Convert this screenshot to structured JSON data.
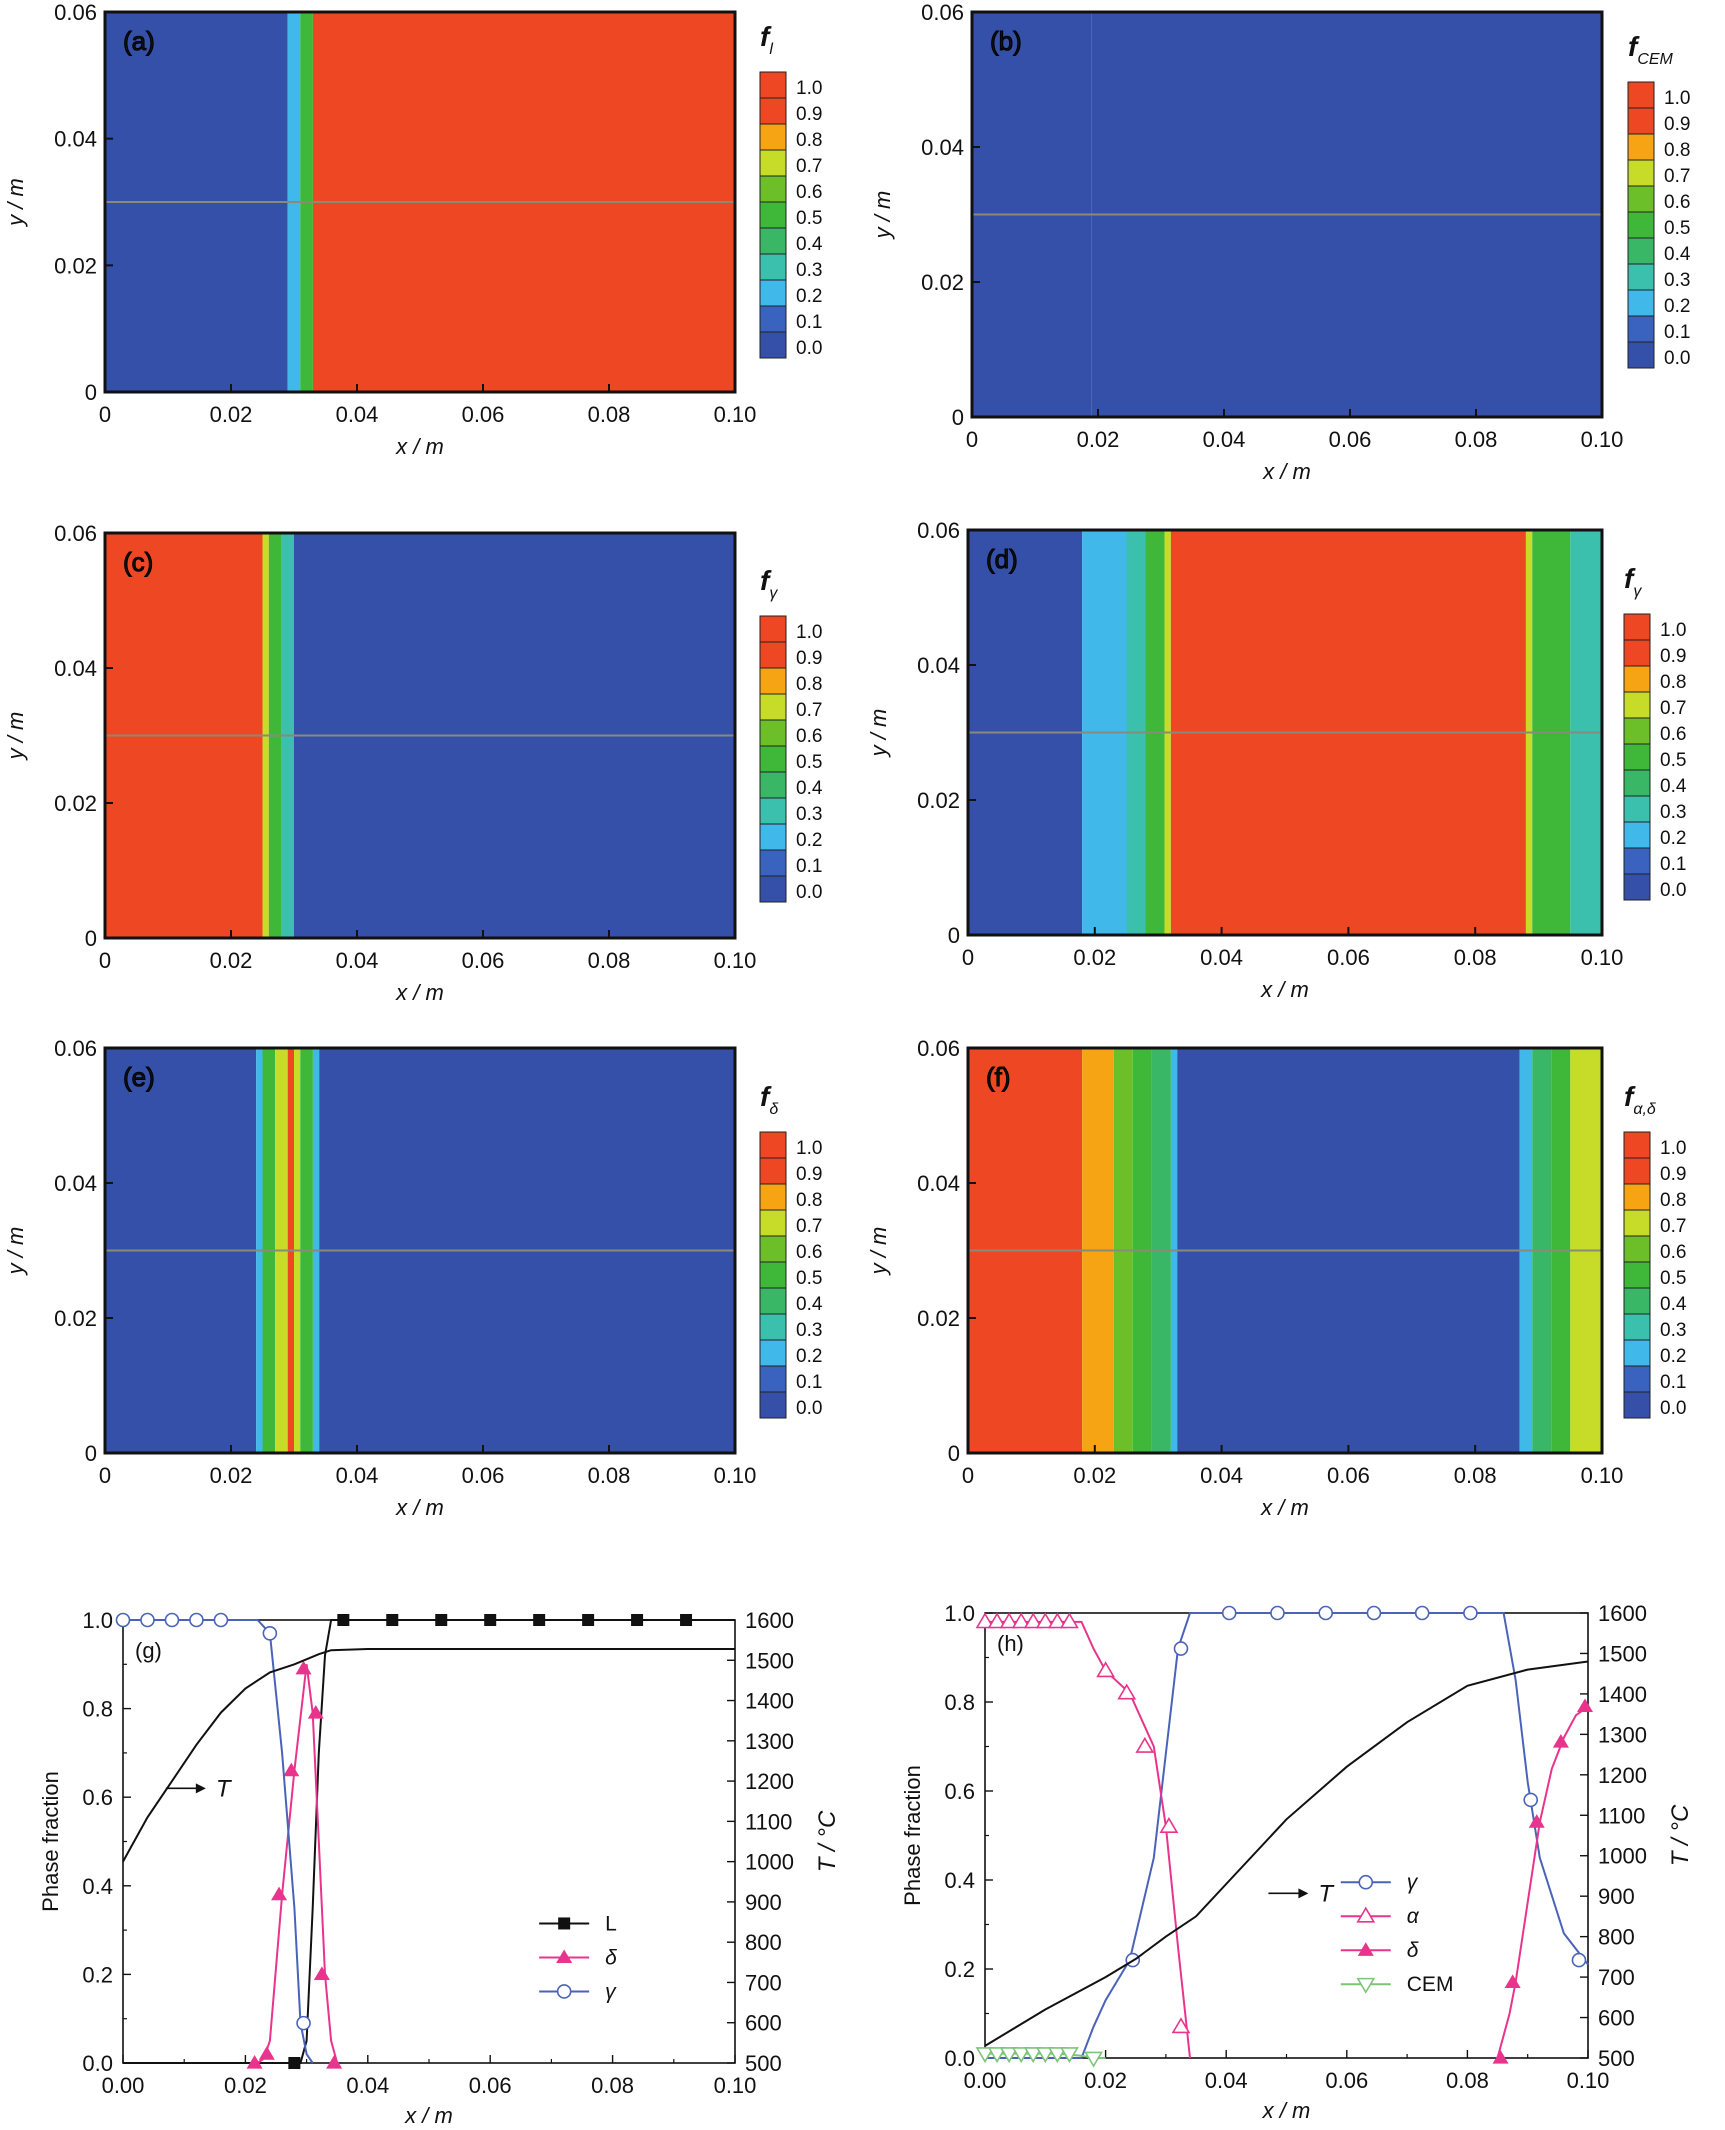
{
  "palette": {
    "contour_levels": [
      "#3550a8",
      "#3a63bf",
      "#40b8ea",
      "#3bc0ad",
      "#39b766",
      "#3fb83a",
      "#6dbf2a",
      "#c7dc28",
      "#f6a414",
      "#f4a020",
      "#ee4723",
      "#e8262a"
    ],
    "red": "#ee4723",
    "orange": "#f6a414",
    "yellow_green": "#c7dc28",
    "cyan": "#40b8ea",
    "blue": "#3550a8",
    "line_L": "#111111",
    "line_delta": "#e8348c",
    "line_gamma": "#4a63b8",
    "line_alpha": "#e8348c",
    "line_cem": "#7cc576",
    "line_T": "#111111"
  },
  "chart_data": [
    {
      "panel": "a",
      "type": "heatmap",
      "label": "(a)",
      "colorbar_title": "f",
      "colorbar_subscript": "l",
      "xlabel": "x / m",
      "ylabel": "y / m",
      "xlim": [
        0,
        0.1
      ],
      "ylim": [
        0,
        0.06
      ],
      "xticks": [
        "0",
        "0.02",
        "0.04",
        "0.06",
        "0.08",
        "0.10"
      ],
      "yticks": [
        "0",
        "0.02",
        "0.04",
        "0.06"
      ],
      "colorbar_ticks": [
        "0.0",
        "0.1",
        "0.2",
        "0.3",
        "0.4",
        "0.5",
        "0.6",
        "0.7",
        "0.8",
        "0.9",
        "1.0"
      ],
      "bands": [
        {
          "x0": 0,
          "x1": 0.029,
          "value": 0.0
        },
        {
          "x0": 0.029,
          "x1": 0.031,
          "value": 0.2
        },
        {
          "x0": 0.031,
          "x1": 0.033,
          "value": 0.6
        },
        {
          "x0": 0.033,
          "x1": 0.1,
          "value": 1.0
        }
      ],
      "profile_line_y": 0.03
    },
    {
      "panel": "b",
      "type": "heatmap",
      "label": "(b)",
      "colorbar_title": "f",
      "colorbar_subscript": "CEM",
      "xlabel": "x / m",
      "ylabel": "y / m",
      "xlim": [
        0,
        0.1
      ],
      "ylim": [
        0,
        0.06
      ],
      "xticks": [
        "0",
        "0.02",
        "0.04",
        "0.06",
        "0.08",
        "0.10"
      ],
      "yticks": [
        "0",
        "0.02",
        "0.04",
        "0.06"
      ],
      "colorbar_ticks": [
        "0.0",
        "0.1",
        "0.2",
        "0.3",
        "0.4",
        "0.5",
        "0.6",
        "0.7",
        "0.8",
        "0.9",
        "1.0"
      ],
      "bands": [
        {
          "x0": 0,
          "x1": 0.019,
          "value": 0.02
        },
        {
          "x0": 0.019,
          "x1": 0.1,
          "value": 0.0
        }
      ],
      "profile_line_y": 0.03
    },
    {
      "panel": "c",
      "type": "heatmap",
      "label": "(c)",
      "colorbar_title": "f",
      "colorbar_subscript": "γ",
      "xlabel": "x / m",
      "ylabel": "y / m",
      "xlim": [
        0,
        0.1
      ],
      "ylim": [
        0,
        0.06
      ],
      "xticks": [
        "0",
        "0.02",
        "0.04",
        "0.06",
        "0.08",
        "0.10"
      ],
      "yticks": [
        "0",
        "0.02",
        "0.04",
        "0.06"
      ],
      "colorbar_ticks": [
        "0.0",
        "0.1",
        "0.2",
        "0.3",
        "0.4",
        "0.5",
        "0.6",
        "0.7",
        "0.8",
        "0.9",
        "1.0"
      ],
      "bands": [
        {
          "x0": 0,
          "x1": 0.025,
          "value": 1.0
        },
        {
          "x0": 0.025,
          "x1": 0.026,
          "value": 0.8
        },
        {
          "x0": 0.026,
          "x1": 0.028,
          "value": 0.5
        },
        {
          "x0": 0.028,
          "x1": 0.03,
          "value": 0.3
        },
        {
          "x0": 0.03,
          "x1": 0.1,
          "value": 0.0
        }
      ],
      "profile_line_y": 0.03
    },
    {
      "panel": "d",
      "type": "heatmap",
      "label": "(d)",
      "colorbar_title": "f",
      "colorbar_subscript": "γ",
      "xlabel": "x / m",
      "ylabel": "y / m",
      "xlim": [
        0,
        0.1
      ],
      "ylim": [
        0,
        0.06
      ],
      "xticks": [
        "0",
        "0.02",
        "0.04",
        "0.06",
        "0.08",
        "0.10"
      ],
      "yticks": [
        "0",
        "0.02",
        "0.04",
        "0.06"
      ],
      "colorbar_ticks": [
        "0.0",
        "0.1",
        "0.2",
        "0.3",
        "0.4",
        "0.5",
        "0.6",
        "0.7",
        "0.8",
        "0.9",
        "1.0"
      ],
      "bands": [
        {
          "x0": 0,
          "x1": 0.018,
          "value": 0.0
        },
        {
          "x0": 0.018,
          "x1": 0.025,
          "value": 0.2
        },
        {
          "x0": 0.025,
          "x1": 0.028,
          "value": 0.3
        },
        {
          "x0": 0.028,
          "x1": 0.031,
          "value": 0.5
        },
        {
          "x0": 0.031,
          "x1": 0.032,
          "value": 0.8
        },
        {
          "x0": 0.032,
          "x1": 0.088,
          "value": 1.0
        },
        {
          "x0": 0.088,
          "x1": 0.089,
          "value": 0.8
        },
        {
          "x0": 0.089,
          "x1": 0.095,
          "value": 0.5
        },
        {
          "x0": 0.095,
          "x1": 0.1,
          "value": 0.3
        }
      ],
      "profile_line_y": 0.03
    },
    {
      "panel": "e",
      "type": "heatmap",
      "label": "(e)",
      "colorbar_title": "f",
      "colorbar_subscript": "δ",
      "xlabel": "x / m",
      "ylabel": "y / m",
      "xlim": [
        0,
        0.1
      ],
      "ylim": [
        0,
        0.06
      ],
      "xticks": [
        "0",
        "0.02",
        "0.04",
        "0.06",
        "0.08",
        "0.10"
      ],
      "yticks": [
        "0",
        "0.02",
        "0.04",
        "0.06"
      ],
      "colorbar_ticks": [
        "0.0",
        "0.1",
        "0.2",
        "0.3",
        "0.4",
        "0.5",
        "0.6",
        "0.7",
        "0.8",
        "0.9",
        "1.0"
      ],
      "bands": [
        {
          "x0": 0,
          "x1": 0.024,
          "value": 0.0
        },
        {
          "x0": 0.024,
          "x1": 0.025,
          "value": 0.2
        },
        {
          "x0": 0.025,
          "x1": 0.027,
          "value": 0.5
        },
        {
          "x0": 0.027,
          "x1": 0.029,
          "value": 0.8
        },
        {
          "x0": 0.029,
          "x1": 0.03,
          "value": 1.0
        },
        {
          "x0": 0.03,
          "x1": 0.031,
          "value": 0.8
        },
        {
          "x0": 0.031,
          "x1": 0.033,
          "value": 0.5
        },
        {
          "x0": 0.033,
          "x1": 0.034,
          "value": 0.2
        },
        {
          "x0": 0.034,
          "x1": 0.1,
          "value": 0.0
        }
      ],
      "profile_line_y": 0.03
    },
    {
      "panel": "f",
      "type": "heatmap",
      "label": "(f)",
      "colorbar_title": "f",
      "colorbar_subscript": "α,δ",
      "xlabel": "x / m",
      "ylabel": "y / m",
      "xlim": [
        0,
        0.1
      ],
      "ylim": [
        0,
        0.06
      ],
      "xticks": [
        "0",
        "0.02",
        "0.04",
        "0.06",
        "0.08",
        "0.10"
      ],
      "yticks": [
        "0",
        "0.02",
        "0.04",
        "0.06"
      ],
      "colorbar_ticks": [
        "0.0",
        "0.1",
        "0.2",
        "0.3",
        "0.4",
        "0.5",
        "0.6",
        "0.7",
        "0.8",
        "0.9",
        "1.0"
      ],
      "bands": [
        {
          "x0": 0,
          "x1": 0.018,
          "value": 1.0
        },
        {
          "x0": 0.018,
          "x1": 0.023,
          "value": 0.85
        },
        {
          "x0": 0.023,
          "x1": 0.026,
          "value": 0.7
        },
        {
          "x0": 0.026,
          "x1": 0.029,
          "value": 0.5
        },
        {
          "x0": 0.029,
          "x1": 0.032,
          "value": 0.4
        },
        {
          "x0": 0.032,
          "x1": 0.033,
          "value": 0.2
        },
        {
          "x0": 0.033,
          "x1": 0.087,
          "value": 0.0
        },
        {
          "x0": 0.087,
          "x1": 0.089,
          "value": 0.2
        },
        {
          "x0": 0.089,
          "x1": 0.092,
          "value": 0.4
        },
        {
          "x0": 0.092,
          "x1": 0.095,
          "value": 0.6
        },
        {
          "x0": 0.095,
          "x1": 0.1,
          "value": 0.75
        }
      ],
      "profile_line_y": 0.03
    },
    {
      "panel": "g",
      "type": "line",
      "label": "(g)",
      "xlabel": "x / m",
      "ylabel": "Phase fraction",
      "y2label": "T / °C",
      "xlim": [
        0,
        0.1
      ],
      "ylim": [
        0,
        1.0
      ],
      "y2lim": [
        500,
        1600
      ],
      "xticks": [
        "0.00",
        "0.02",
        "0.04",
        "0.06",
        "0.08",
        "0.10"
      ],
      "yticks": [
        "0.0",
        "0.2",
        "0.4",
        "0.6",
        "0.8",
        "1.0"
      ],
      "y2ticks": [
        "500",
        "600",
        "700",
        "800",
        "900",
        "1000",
        "1100",
        "1200",
        "1300",
        "1400",
        "1500",
        "1600"
      ],
      "annotation": "T",
      "legend_position": "lower-right",
      "series": [
        {
          "name": "L",
          "marker": "square-filled",
          "color": "#111111",
          "x": [
            0,
            0.026,
            0.028,
            0.029,
            0.03,
            0.031,
            0.032,
            0.033,
            0.034,
            0.036,
            0.044,
            0.052,
            0.06,
            0.068,
            0.076,
            0.084,
            0.092,
            0.1
          ],
          "y": [
            0,
            0,
            0,
            0,
            0.05,
            0.35,
            0.7,
            0.92,
            1.0,
            1.0,
            1.0,
            1.0,
            1.0,
            1.0,
            1.0,
            1.0,
            1.0,
            1.0
          ],
          "markers_x": [
            0.028,
            0.036,
            0.044,
            0.052,
            0.06,
            0.068,
            0.076,
            0.084,
            0.092
          ],
          "markers_y": [
            0,
            1.0,
            1.0,
            1.0,
            1.0,
            1.0,
            1.0,
            1.0,
            1.0
          ]
        },
        {
          "name": "δ",
          "marker": "triangle-up-filled",
          "color": "#e8348c",
          "x": [
            0.022,
            0.023,
            0.024,
            0.026,
            0.028,
            0.03,
            0.031,
            0.032,
            0.033,
            0.034,
            0.035
          ],
          "y": [
            0,
            0.01,
            0.05,
            0.38,
            0.66,
            0.9,
            0.79,
            0.5,
            0.2,
            0.05,
            0.0
          ],
          "markers_x": [
            0.0215,
            0.0235,
            0.0255,
            0.0275,
            0.0295,
            0.0315,
            0.0325,
            0.0345
          ],
          "markers_y": [
            0.0,
            0.02,
            0.38,
            0.66,
            0.89,
            0.79,
            0.2,
            0.0
          ]
        },
        {
          "name": "γ",
          "marker": "circle-open",
          "color": "#4a63b8",
          "x": [
            0,
            0.008,
            0.016,
            0.022,
            0.024,
            0.026,
            0.028,
            0.029,
            0.03,
            0.031
          ],
          "y": [
            1.0,
            1.0,
            1.0,
            1.0,
            0.97,
            0.7,
            0.35,
            0.09,
            0.02,
            0.0
          ],
          "markers_x": [
            0,
            0.004,
            0.008,
            0.012,
            0.016,
            0.024,
            0.0295
          ],
          "markers_y": [
            1.0,
            1.0,
            1.0,
            1.0,
            1.0,
            0.97,
            0.09
          ]
        },
        {
          "name": "T",
          "marker": "none",
          "color": "#111111",
          "axis": "right",
          "x": [
            0,
            0.004,
            0.008,
            0.012,
            0.016,
            0.02,
            0.024,
            0.028,
            0.032,
            0.034,
            0.04,
            0.06,
            0.08,
            0.1
          ],
          "y": [
            1000,
            1110,
            1200,
            1290,
            1370,
            1430,
            1470,
            1490,
            1515,
            1525,
            1528,
            1528,
            1528,
            1528
          ]
        }
      ]
    },
    {
      "panel": "h",
      "type": "line",
      "label": "(h)",
      "xlabel": "x / m",
      "ylabel": "Phase fraction",
      "y2label": "T / °C",
      "xlim": [
        0,
        0.1
      ],
      "ylim": [
        0,
        1.0
      ],
      "y2lim": [
        500,
        1600
      ],
      "xticks": [
        "0.00",
        "0.02",
        "0.04",
        "0.06",
        "0.08",
        "0.10"
      ],
      "yticks": [
        "0.0",
        "0.2",
        "0.4",
        "0.6",
        "0.8",
        "1.0"
      ],
      "y2ticks": [
        "500",
        "600",
        "700",
        "800",
        "900",
        "1000",
        "1100",
        "1200",
        "1300",
        "1400",
        "1500",
        "1600"
      ],
      "annotation": "T",
      "legend_position": "lower-right",
      "series": [
        {
          "name": "γ",
          "marker": "circle-open",
          "color": "#4a63b8",
          "x": [
            0,
            0.016,
            0.018,
            0.02,
            0.024,
            0.028,
            0.032,
            0.034,
            0.04,
            0.06,
            0.08,
            0.086,
            0.088,
            0.09,
            0.092,
            0.096,
            0.1
          ],
          "y": [
            0,
            0,
            0.07,
            0.13,
            0.22,
            0.45,
            0.92,
            1.0,
            1.0,
            1.0,
            1.0,
            1.0,
            0.85,
            0.62,
            0.45,
            0.28,
            0.21
          ],
          "markers_x": [
            0.0245,
            0.0325,
            0.0405,
            0.0485,
            0.0565,
            0.0645,
            0.0725,
            0.0805,
            0.0905,
            0.0985
          ],
          "markers_y": [
            0.22,
            0.92,
            1.0,
            1.0,
            1.0,
            1.0,
            1.0,
            1.0,
            0.58,
            0.22
          ]
        },
        {
          "name": "α",
          "marker": "triangle-up-open",
          "color": "#e8348c",
          "x": [
            0,
            0.008,
            0.016,
            0.018,
            0.02,
            0.024,
            0.028,
            0.03,
            0.032,
            0.034
          ],
          "y": [
            0.98,
            0.98,
            0.98,
            0.92,
            0.87,
            0.82,
            0.7,
            0.52,
            0.25,
            0.0
          ],
          "markers_x": [
            0,
            0.002,
            0.004,
            0.006,
            0.008,
            0.01,
            0.012,
            0.014,
            0.02,
            0.0235,
            0.0265,
            0.0305,
            0.0325
          ],
          "markers_y": [
            0.98,
            0.98,
            0.98,
            0.98,
            0.98,
            0.98,
            0.98,
            0.98,
            0.87,
            0.82,
            0.7,
            0.52,
            0.07
          ]
        },
        {
          "name": "δ",
          "marker": "triangle-up-filled",
          "color": "#e8348c",
          "x": [
            0.085,
            0.087,
            0.088,
            0.09,
            0.092,
            0.094,
            0.096,
            0.098,
            0.1
          ],
          "y": [
            0,
            0.1,
            0.17,
            0.35,
            0.53,
            0.65,
            0.72,
            0.77,
            0.79
          ],
          "markers_x": [
            0.0855,
            0.0875,
            0.0915,
            0.0955,
            0.0995
          ],
          "markers_y": [
            0.0,
            0.17,
            0.53,
            0.71,
            0.79
          ]
        },
        {
          "name": "CEM",
          "marker": "triangle-down-open",
          "color": "#7cc576",
          "x": [
            0,
            0.004,
            0.008,
            0.012,
            0.016,
            0.018,
            0.02
          ],
          "y": [
            0.01,
            0.01,
            0.01,
            0.01,
            0.005,
            0.0,
            0.0
          ],
          "markers_x": [
            0,
            0.002,
            0.004,
            0.006,
            0.008,
            0.01,
            0.012,
            0.014,
            0.018
          ],
          "markers_y": [
            0.01,
            0.01,
            0.01,
            0.01,
            0.01,
            0.01,
            0.01,
            0.01,
            0.0
          ]
        },
        {
          "name": "T",
          "marker": "none",
          "color": "#111111",
          "axis": "right",
          "x": [
            0,
            0.01,
            0.02,
            0.025,
            0.03,
            0.035,
            0.04,
            0.05,
            0.06,
            0.07,
            0.08,
            0.09,
            0.1
          ],
          "y": [
            530,
            620,
            700,
            745,
            800,
            850,
            930,
            1090,
            1220,
            1330,
            1420,
            1460,
            1480
          ]
        }
      ]
    }
  ]
}
